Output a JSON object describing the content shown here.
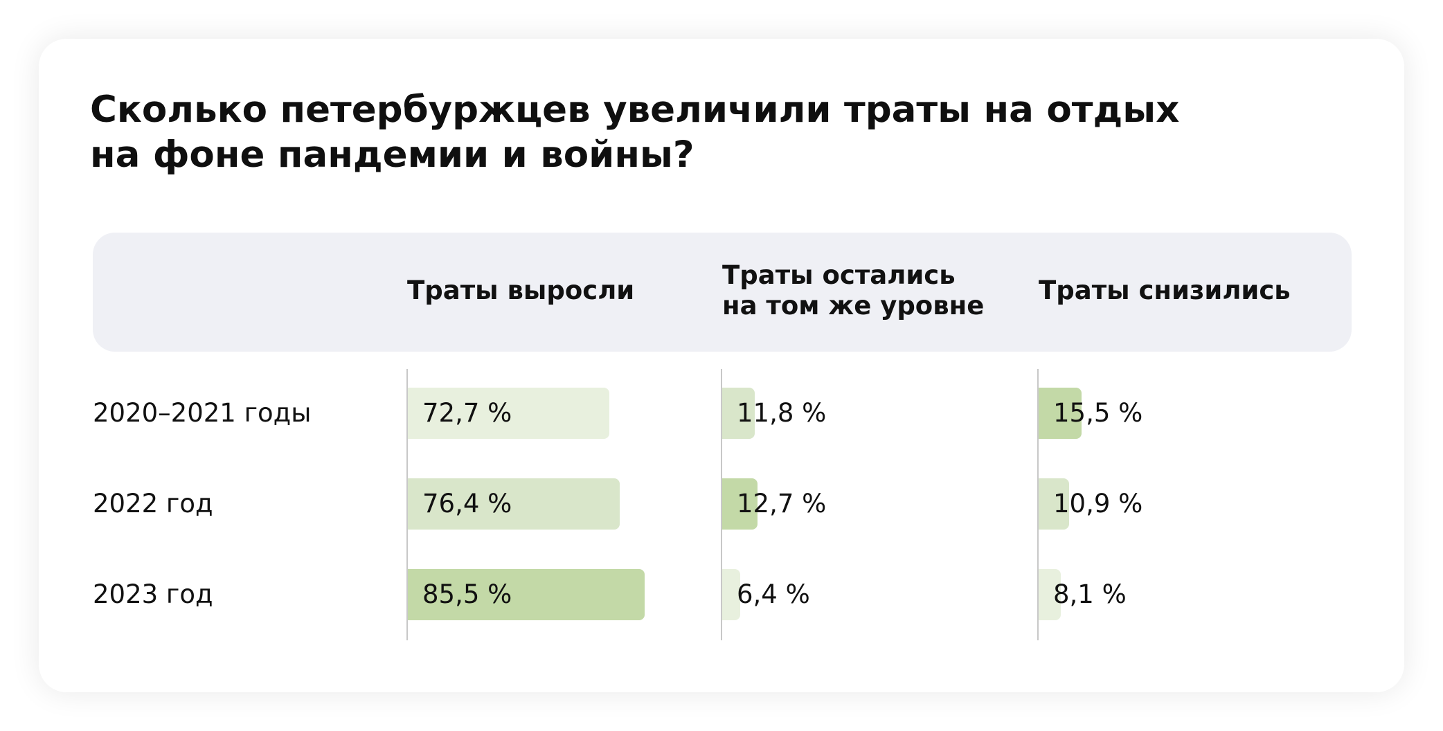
{
  "chart_data": {
    "type": "table",
    "title": "Сколько петербуржцев увеличили траты на отдых на фоне пандемии и войны?",
    "columns": [
      "Траты выросли",
      "Траты остались\nна том же уровне",
      "Траты снизились"
    ],
    "rows": [
      "2020–2021 годы",
      "2022 год",
      "2023 год"
    ],
    "unit": "%",
    "values": [
      [
        72.7,
        11.8,
        15.5
      ],
      [
        76.4,
        12.7,
        10.9
      ],
      [
        85.5,
        6.4,
        8.1
      ]
    ],
    "value_labels": [
      [
        "72,7 %",
        "11,8 %",
        "15,5 %"
      ],
      [
        "76,4 %",
        "12,7 %",
        "10,9 %"
      ],
      [
        "85,5 %",
        "6,4 %",
        "8,1 %"
      ]
    ],
    "colors": {
      "bar_low": "#e8f0de",
      "bar_mid": "#d9e6ca",
      "bar_high": "#c3d9a7",
      "header_bg": "#eff0f5",
      "axis": "#c8c8c8"
    }
  }
}
